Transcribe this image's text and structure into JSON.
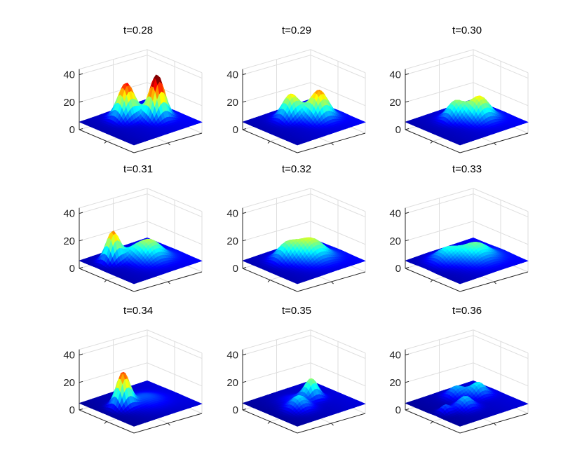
{
  "figure": {
    "description_type": "grid of 3D surface plots"
  },
  "chart_data": [
    {
      "type": "surface",
      "title": "t=0.28",
      "zticks": [
        "0",
        "20",
        "40"
      ],
      "zlim": [
        0,
        40
      ],
      "colormap": "jet",
      "peaks": [
        {
          "x": 0.3,
          "y": 0.55,
          "height": 36,
          "width": 0.09
        },
        {
          "x": 0.55,
          "y": 0.3,
          "height": 30,
          "width": 0.1
        }
      ],
      "base": 8
    },
    {
      "type": "surface",
      "title": "t=0.29",
      "zticks": [
        "0",
        "20",
        "40"
      ],
      "zlim": [
        0,
        40
      ],
      "colormap": "jet",
      "peaks": [
        {
          "x": 0.32,
          "y": 0.55,
          "height": 25,
          "width": 0.11
        },
        {
          "x": 0.55,
          "y": 0.32,
          "height": 22,
          "width": 0.1
        }
      ],
      "base": 8
    },
    {
      "type": "surface",
      "title": "t=0.30",
      "zticks": [
        "0",
        "20",
        "40"
      ],
      "zlim": [
        0,
        40
      ],
      "colormap": "jet",
      "peaks": [
        {
          "x": 0.35,
          "y": 0.55,
          "height": 21,
          "width": 0.12
        },
        {
          "x": 0.55,
          "y": 0.35,
          "height": 17,
          "width": 0.1
        }
      ],
      "base": 8
    },
    {
      "type": "surface",
      "title": "t=0.31",
      "zticks": [
        "0",
        "20",
        "40"
      ],
      "zlim": [
        0,
        40
      ],
      "colormap": "jet",
      "peaks": [
        {
          "x": 0.4,
          "y": 0.55,
          "height": 18,
          "width": 0.14
        },
        {
          "x": 0.55,
          "y": 0.4,
          "height": 9,
          "width": 0.1
        },
        {
          "x": 0.75,
          "y": 0.3,
          "height": 26,
          "width": 0.08
        }
      ],
      "base": 8
    },
    {
      "type": "surface",
      "title": "t=0.32",
      "zticks": [
        "0",
        "20",
        "40"
      ],
      "zlim": [
        0,
        40
      ],
      "colormap": "jet",
      "peaks": [
        {
          "x": 0.4,
          "y": 0.55,
          "height": 17,
          "width": 0.15
        },
        {
          "x": 0.65,
          "y": 0.35,
          "height": 15,
          "width": 0.11
        },
        {
          "x": 0.5,
          "y": 0.45,
          "height": 8,
          "width": 0.12
        }
      ],
      "base": 8
    },
    {
      "type": "surface",
      "title": "t=0.33",
      "zticks": [
        "0",
        "20",
        "40"
      ],
      "zlim": [
        0,
        40
      ],
      "colormap": "jet",
      "peaks": [
        {
          "x": 0.4,
          "y": 0.55,
          "height": 16,
          "width": 0.16
        },
        {
          "x": 0.68,
          "y": 0.35,
          "height": 13,
          "width": 0.13
        }
      ],
      "base": 8
    },
    {
      "type": "surface",
      "title": "t=0.34",
      "zticks": [
        "0",
        "20",
        "40"
      ],
      "zlim": [
        0,
        40
      ],
      "colormap": "jet",
      "peaks": [
        {
          "x": 0.72,
          "y": 0.45,
          "height": 28,
          "width": 0.08
        },
        {
          "x": 0.45,
          "y": 0.5,
          "height": 8,
          "width": 0.18
        }
      ],
      "base": 7
    },
    {
      "type": "surface",
      "title": "t=0.35",
      "zticks": [
        "0",
        "20",
        "40"
      ],
      "zlim": [
        0,
        40
      ],
      "colormap": "jet",
      "peaks": [
        {
          "x": 0.35,
          "y": 0.45,
          "height": 18,
          "width": 0.08
        },
        {
          "x": 0.65,
          "y": 0.6,
          "height": 13,
          "width": 0.1
        },
        {
          "x": 0.55,
          "y": 0.35,
          "height": 6,
          "width": 0.12
        }
      ],
      "base": 7
    },
    {
      "type": "surface",
      "title": "t=0.36",
      "zticks": [
        "0",
        "20",
        "40"
      ],
      "zlim": [
        0,
        40
      ],
      "colormap": "jet",
      "peaks": [
        {
          "x": 0.25,
          "y": 0.4,
          "height": 13,
          "width": 0.09
        },
        {
          "x": 0.6,
          "y": 0.6,
          "height": 12,
          "width": 0.09
        },
        {
          "x": 0.45,
          "y": 0.25,
          "height": 11,
          "width": 0.09
        },
        {
          "x": 0.85,
          "y": 0.55,
          "height": 9,
          "width": 0.06
        }
      ],
      "base": 7
    }
  ]
}
